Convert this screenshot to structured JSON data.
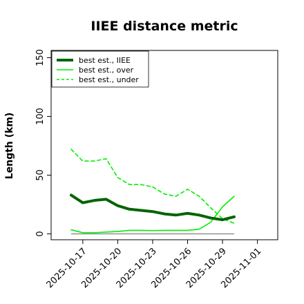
{
  "chart_data": {
    "type": "line",
    "title": "IIEE distance metric",
    "xlabel": "",
    "ylabel": "Length (km)",
    "x_start": "2025-10-16",
    "x_end": "2025-11-03",
    "ylim": [
      -5,
      158
    ],
    "y_ticks": [
      0,
      50,
      100,
      150
    ],
    "y_tick_labels": [
      "0",
      "50",
      "100",
      "150"
    ],
    "x_ticks": [
      "2025-10-17",
      "2025-10-20",
      "2025-10-23",
      "2025-10-26",
      "2025-10-29",
      "2025-11-01"
    ],
    "x_tick_labels": [
      "2025-10-17",
      "2025-10-20",
      "2025-10-23",
      "2025-10-26",
      "2025-10-29",
      "2025-11-01"
    ],
    "grid": false,
    "legend_position": "top-left",
    "x": [
      "2025-10-16",
      "2025-10-17",
      "2025-10-18",
      "2025-10-19",
      "2025-10-20",
      "2025-10-21",
      "2025-10-22",
      "2025-10-23",
      "2025-10-24",
      "2025-10-25",
      "2025-10-26",
      "2025-10-27",
      "2025-10-28",
      "2025-10-29",
      "2025-10-30"
    ],
    "series": [
      {
        "name": "best est., IIEE",
        "color": "#006400",
        "style": "solid",
        "width": "thick",
        "values": [
          33,
          26.5,
          28.5,
          29.5,
          24,
          21,
          20,
          19,
          17,
          16,
          17.5,
          16,
          13.5,
          12,
          14.5
        ]
      },
      {
        "name": "best est., over",
        "color": "#00ee00",
        "style": "solid",
        "width": "thin",
        "values": [
          3.5,
          1,
          1,
          1.5,
          2,
          3,
          3,
          2.8,
          3,
          3,
          3,
          4,
          10,
          23,
          32
        ]
      },
      {
        "name": "best est., under",
        "color": "#00ee00",
        "style": "dashed",
        "width": "thin",
        "values": [
          72,
          62,
          62,
          64,
          48,
          42,
          42,
          40,
          34,
          32,
          38,
          32,
          22,
          13,
          9
        ]
      }
    ],
    "baseline": {
      "color": "#808080",
      "x_start": "2025-10-16",
      "x_end": "2025-10-30",
      "value": 0
    }
  }
}
